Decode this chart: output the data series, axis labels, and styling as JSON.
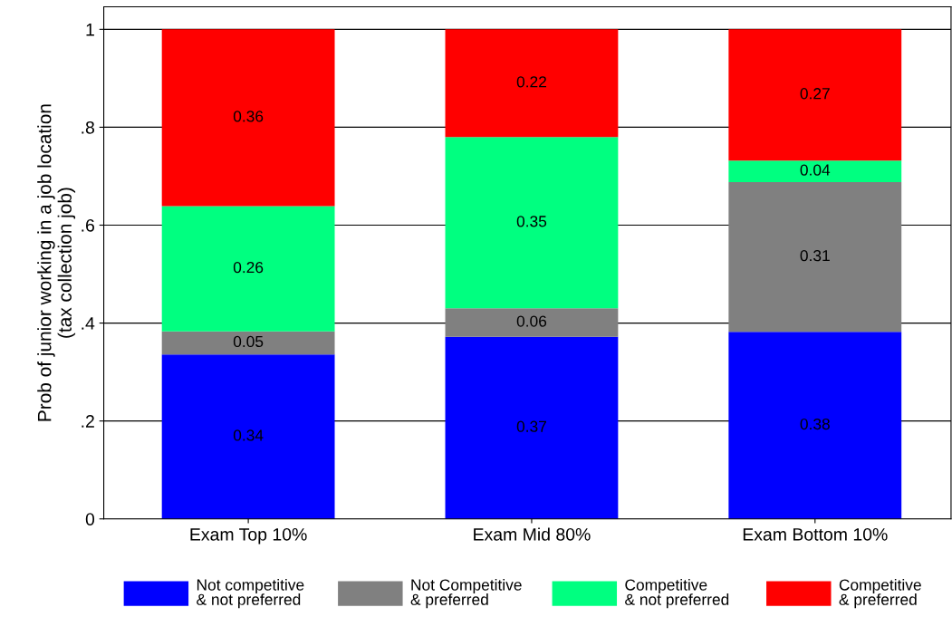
{
  "chart_data": {
    "type": "bar",
    "stacked": true,
    "ylabel": "Prob of junior working in a job location\n(tax collection job)",
    "categories": [
      "Exam Top 10%",
      "Exam Mid 80%",
      "Exam Bottom 10%"
    ],
    "series": [
      {
        "name": "Not competitive\n& not preferred",
        "color": "#0000ff",
        "values": [
          0.336,
          0.372,
          0.382
        ],
        "value_labels": [
          "0.34",
          "0.37",
          "0.38"
        ]
      },
      {
        "name": "Not Competitive\n& preferred",
        "color": "#808080",
        "values": [
          0.047,
          0.058,
          0.306
        ],
        "value_labels": [
          "0.05",
          "0.06",
          "0.31"
        ]
      },
      {
        "name": "Competitive\n& not preferred",
        "color": "#00ff80",
        "values": [
          0.256,
          0.35,
          0.044
        ],
        "value_labels": [
          "0.26",
          "0.35",
          "0.04"
        ]
      },
      {
        "name": "Competitive\n& preferred",
        "color": "#ff0000",
        "values": [
          0.361,
          0.22,
          0.268
        ],
        "value_labels": [
          "0.36",
          "0.22",
          "0.27"
        ]
      }
    ],
    "ylim": [
      0,
      1.046
    ],
    "yticks": [
      {
        "value": 0,
        "label": "0"
      },
      {
        "value": 0.2,
        "label": ".2"
      },
      {
        "value": 0.4,
        "label": ".4"
      },
      {
        "value": 0.6,
        "label": ".6"
      },
      {
        "value": 0.8,
        "label": ".8"
      },
      {
        "value": 1,
        "label": "1"
      }
    ],
    "grid": "y",
    "legend": "bottom"
  }
}
